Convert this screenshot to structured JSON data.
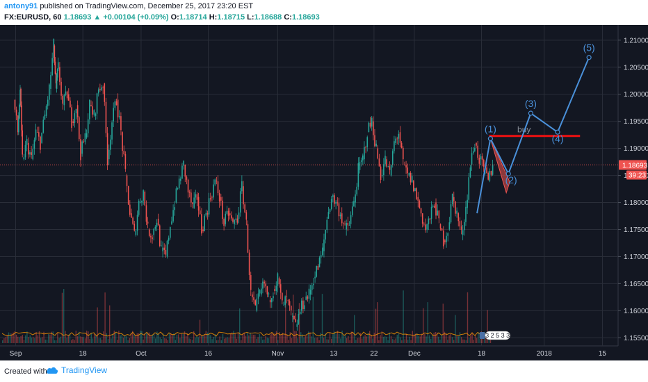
{
  "header": {
    "author": "antony91",
    "published_text": "published on TradingView.com, December 25, 2017 23:20 EST",
    "symbol": "FX:EURUSD, 60",
    "last": "1.18693",
    "change_arrow": "▲",
    "change": "+0.00104 (+0.09%)",
    "open_label": "O:",
    "open": "1.18714",
    "high_label": "H:",
    "high": "1.18715",
    "low_label": "L:",
    "low": "1.18688",
    "close_label": "C:",
    "close": "1.18693"
  },
  "footer": {
    "created_with": "Created with",
    "brand": "TradingView"
  },
  "chart_data": {
    "type": "candlestick",
    "y_ticks": [
      "1.21000",
      "1.20500",
      "1.20000",
      "1.19500",
      "1.19000",
      "1.18500",
      "1.18000",
      "1.17500",
      "1.17000",
      "1.16500",
      "1.16000",
      "1.15500"
    ],
    "y_tick_values": [
      1.21,
      1.205,
      1.2,
      1.195,
      1.19,
      1.185,
      1.18,
      1.175,
      1.17,
      1.165,
      1.16,
      1.155
    ],
    "ylim": [
      1.1535,
      1.2128
    ],
    "x_ticks": [
      {
        "label": "Sep",
        "x": 0.5
      },
      {
        "label": "18",
        "x": 15.5
      },
      {
        "label": "Oct",
        "x": 28.5
      },
      {
        "label": "16",
        "x": 43.5
      },
      {
        "label": "Nov",
        "x": 59
      },
      {
        "label": "13",
        "x": 71.5
      },
      {
        "label": "22",
        "x": 80.5
      },
      {
        "label": "Dec",
        "x": 89.5
      },
      {
        "label": "18",
        "x": 104.5
      },
      {
        "label": "2018",
        "x": 118.5
      },
      {
        "label": "15",
        "x": 131.5
      }
    ],
    "xlim": [
      -3,
      135
    ],
    "last_price": "1.18693",
    "last_price_value": 1.18693,
    "countdown": "39:23",
    "price_series": [
      [
        0,
        1.199
      ],
      [
        1,
        1.193
      ],
      [
        1.5,
        1.201
      ],
      [
        2,
        1.188
      ],
      [
        3,
        1.191
      ],
      [
        4,
        1.188
      ],
      [
        5,
        1.193
      ],
      [
        6,
        1.191
      ],
      [
        7,
        1.196
      ],
      [
        8,
        1.201
      ],
      [
        9,
        1.209
      ],
      [
        9.5,
        1.201
      ],
      [
        10,
        1.205
      ],
      [
        11,
        1.198
      ],
      [
        12,
        1.2
      ],
      [
        13,
        1.195
      ],
      [
        14,
        1.198
      ],
      [
        15,
        1.189
      ],
      [
        16,
        1.192
      ],
      [
        17,
        1.198
      ],
      [
        18,
        1.196
      ],
      [
        19,
        1.201
      ],
      [
        20,
        1.202
      ],
      [
        21,
        1.188
      ],
      [
        22,
        1.195
      ],
      [
        23,
        1.199
      ],
      [
        24,
        1.193
      ],
      [
        25,
        1.185
      ],
      [
        26,
        1.178
      ],
      [
        27,
        1.174
      ],
      [
        28,
        1.18
      ],
      [
        29,
        1.182
      ],
      [
        30,
        1.175
      ],
      [
        31,
        1.174
      ],
      [
        32,
        1.177
      ],
      [
        33,
        1.171
      ],
      [
        34,
        1.17
      ],
      [
        35,
        1.176
      ],
      [
        36,
        1.18
      ],
      [
        37,
        1.184
      ],
      [
        38,
        1.187
      ],
      [
        39,
        1.182
      ],
      [
        40,
        1.179
      ],
      [
        41,
        1.181
      ],
      [
        42,
        1.175
      ],
      [
        43,
        1.178
      ],
      [
        44,
        1.181
      ],
      [
        45,
        1.184
      ],
      [
        46,
        1.181
      ],
      [
        47,
        1.176
      ],
      [
        48,
        1.178
      ],
      [
        49,
        1.176
      ],
      [
        50,
        1.177
      ],
      [
        51,
        1.183
      ],
      [
        52,
        1.176
      ],
      [
        53,
        1.163
      ],
      [
        54,
        1.16
      ],
      [
        55,
        1.163
      ],
      [
        56,
        1.165
      ],
      [
        57,
        1.162
      ],
      [
        58,
        1.164
      ],
      [
        59,
        1.166
      ],
      [
        60,
        1.161
      ],
      [
        61,
        1.162
      ],
      [
        62,
        1.159
      ],
      [
        63,
        1.157
      ],
      [
        64,
        1.16
      ],
      [
        65,
        1.162
      ],
      [
        66,
        1.163
      ],
      [
        67,
        1.166
      ],
      [
        68,
        1.168
      ],
      [
        69,
        1.171
      ],
      [
        70,
        1.177
      ],
      [
        71,
        1.181
      ],
      [
        72,
        1.18
      ],
      [
        73,
        1.178
      ],
      [
        74,
        1.175
      ],
      [
        75,
        1.176
      ],
      [
        76,
        1.18
      ],
      [
        77,
        1.186
      ],
      [
        78,
        1.188
      ],
      [
        79,
        1.193
      ],
      [
        80,
        1.195
      ],
      [
        81,
        1.19
      ],
      [
        82,
        1.185
      ],
      [
        83,
        1.188
      ],
      [
        84,
        1.185
      ],
      [
        85,
        1.191
      ],
      [
        86,
        1.193
      ],
      [
        87,
        1.187
      ],
      [
        88,
        1.185
      ],
      [
        89,
        1.184
      ],
      [
        90,
        1.181
      ],
      [
        91,
        1.178
      ],
      [
        92,
        1.175
      ],
      [
        93,
        1.177
      ],
      [
        94,
        1.18
      ],
      [
        95,
        1.176
      ],
      [
        96,
        1.173
      ],
      [
        97,
        1.175
      ],
      [
        98,
        1.181
      ],
      [
        99,
        1.178
      ],
      [
        100,
        1.174
      ],
      [
        101,
        1.179
      ],
      [
        102,
        1.187
      ],
      [
        103,
        1.191
      ],
      [
        104,
        1.188
      ],
      [
        105,
        1.186
      ],
      [
        106,
        1.184
      ],
      [
        107,
        1.1869
      ]
    ],
    "wave_path": [
      [
        103.5,
        1.178
      ],
      [
        106.5,
        1.1918
      ],
      [
        110.5,
        1.1853
      ],
      [
        115.5,
        1.1965
      ],
      [
        121.5,
        1.193
      ],
      [
        128.5,
        1.2068
      ]
    ],
    "wave_labels": [
      "(1)",
      "(2)",
      "(3)",
      "(4)",
      "(5)"
    ],
    "buy_level": 1.1923,
    "buy_label": "buy",
    "volume_badge": "3 2 5 3 3",
    "colors": {
      "background": "#131722",
      "up": "#26a69a",
      "down": "#ef5350",
      "wave": "#4a90d9",
      "buy_line": "#ee1111",
      "grid": "#2a2e39",
      "axis_text": "#d1d4dc"
    }
  }
}
